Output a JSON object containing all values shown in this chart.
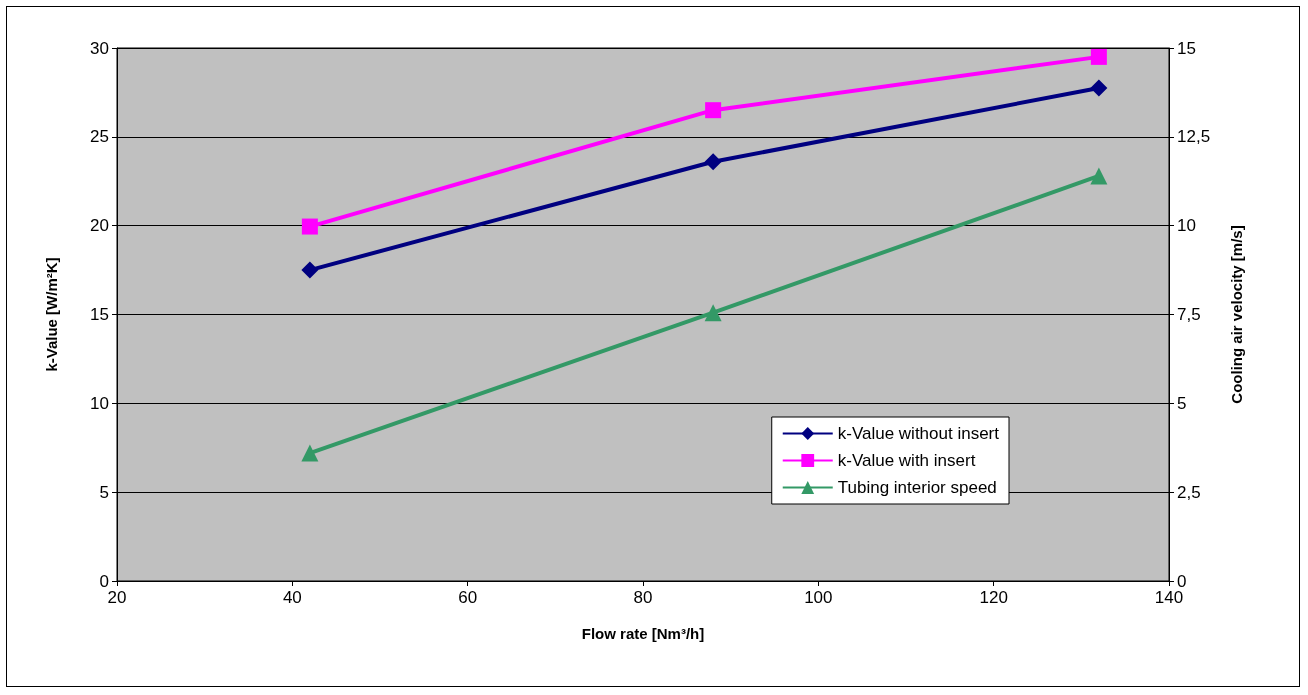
{
  "chart_data": {
    "type": "line",
    "xlabel": "Flow rate [Nm³/h]",
    "ylabel": "k-Value [W/m²K]",
    "y2label": "Cooling air velocity [m/s]",
    "x": [
      42,
      88,
      132
    ],
    "series": [
      {
        "name": "k-Value without insert",
        "color": "#000080",
        "marker": "diamond",
        "values": [
          17.5,
          23.6,
          27.75
        ]
      },
      {
        "name": "k-Value with insert",
        "color": "#ff00ff",
        "marker": "square",
        "values": [
          19.95,
          26.5,
          29.5
        ]
      },
      {
        "name": "Tubing interior speed",
        "color": "#339966",
        "marker": "triangle",
        "axis": "y2",
        "values": [
          3.6,
          7.55,
          11.4
        ]
      }
    ],
    "xlim": [
      20,
      140
    ],
    "xticks": [
      20,
      40,
      60,
      80,
      100,
      120,
      140
    ],
    "ylim": [
      0,
      30
    ],
    "yticks": [
      0,
      5,
      10,
      15,
      20,
      25,
      30
    ],
    "y2lim": [
      0,
      15
    ],
    "y2ticks": [
      0,
      {
        "value": 2.5,
        "label": "2,5"
      },
      5,
      {
        "value": 7.5,
        "label": "7,5"
      },
      10,
      {
        "value": 12.5,
        "label": "12,5"
      },
      15
    ],
    "grid": "y",
    "legend": "right"
  }
}
